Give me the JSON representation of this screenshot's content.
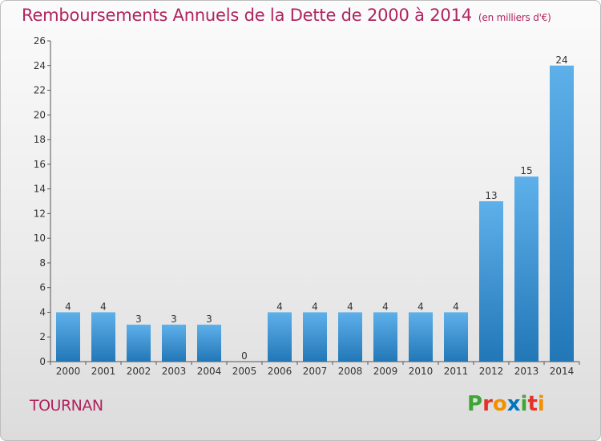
{
  "title": "Remboursements Annuels de la Dette de 2000 à 2014",
  "unit_note": "(en milliers d'€)",
  "commune": "TOURNAN",
  "logo": {
    "letters": [
      "P",
      "r",
      "o",
      "x",
      "i",
      "t",
      "i"
    ],
    "colors": [
      "#3fa535",
      "#e5332a",
      "#f29100",
      "#0075bf",
      "#3fa535",
      "#e5332a",
      "#f29100"
    ]
  },
  "chart_data": {
    "type": "bar",
    "title": "Remboursements Annuels de la Dette de 2000 à 2014",
    "categories": [
      "2000",
      "2001",
      "2002",
      "2003",
      "2004",
      "2005",
      "2006",
      "2007",
      "2008",
      "2009",
      "2010",
      "2011",
      "2012",
      "2013",
      "2014"
    ],
    "values": [
      4,
      4,
      3,
      3,
      3,
      0,
      4,
      4,
      4,
      4,
      4,
      4,
      13,
      15,
      24
    ],
    "data_labels": [
      "4",
      "4",
      "3",
      "3",
      "3",
      "0",
      "4",
      "4",
      "4",
      "4",
      "4",
      "4",
      "13",
      "15",
      "24"
    ],
    "ylim": [
      0,
      26
    ],
    "yticks": [
      "0",
      "2",
      "4",
      "6",
      "8",
      "10",
      "12",
      "14",
      "16",
      "18",
      "20",
      "22",
      "24",
      "26"
    ],
    "xlabel": "",
    "ylabel": "",
    "grid": false,
    "bar_color": "#3f97d8"
  }
}
